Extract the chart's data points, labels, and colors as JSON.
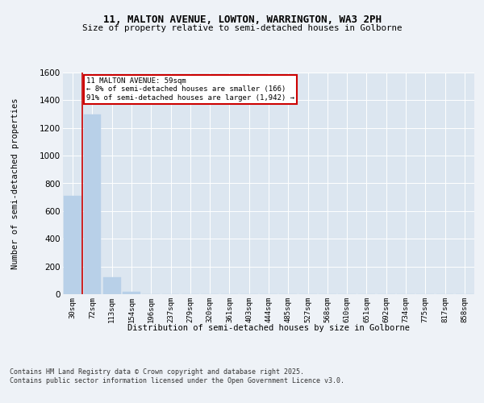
{
  "title_line1": "11, MALTON AVENUE, LOWTON, WARRINGTON, WA3 2PH",
  "title_line2": "Size of property relative to semi-detached houses in Golborne",
  "xlabel": "Distribution of semi-detached houses by size in Golborne",
  "ylabel": "Number of semi-detached properties",
  "categories": [
    "30sqm",
    "72sqm",
    "113sqm",
    "154sqm",
    "196sqm",
    "237sqm",
    "279sqm",
    "320sqm",
    "361sqm",
    "403sqm",
    "444sqm",
    "485sqm",
    "527sqm",
    "568sqm",
    "610sqm",
    "651sqm",
    "692sqm",
    "734sqm",
    "775sqm",
    "817sqm",
    "858sqm"
  ],
  "values": [
    707,
    1300,
    120,
    18,
    0,
    0,
    0,
    0,
    0,
    0,
    0,
    0,
    0,
    0,
    0,
    0,
    0,
    0,
    0,
    0,
    0
  ],
  "bar_color": "#b8d0e8",
  "property_size": 59,
  "pct_smaller": 8,
  "num_smaller": 166,
  "pct_larger": 91,
  "num_larger": 1942,
  "annotation_text": "11 MALTON AVENUE: 59sqm\n← 8% of semi-detached houses are smaller (166)\n91% of semi-detached houses are larger (1,942) →",
  "ylim": [
    0,
    1600
  ],
  "yticks": [
    0,
    200,
    400,
    600,
    800,
    1000,
    1200,
    1400,
    1600
  ],
  "footer_text": "Contains HM Land Registry data © Crown copyright and database right 2025.\nContains public sector information licensed under the Open Government Licence v3.0.",
  "background_color": "#eef2f7",
  "plot_background_color": "#dce6f0",
  "grid_color": "#ffffff",
  "red_line_color": "#cc0000",
  "annotation_box_color": "#cc0000",
  "red_line_bar_index": 0.5
}
